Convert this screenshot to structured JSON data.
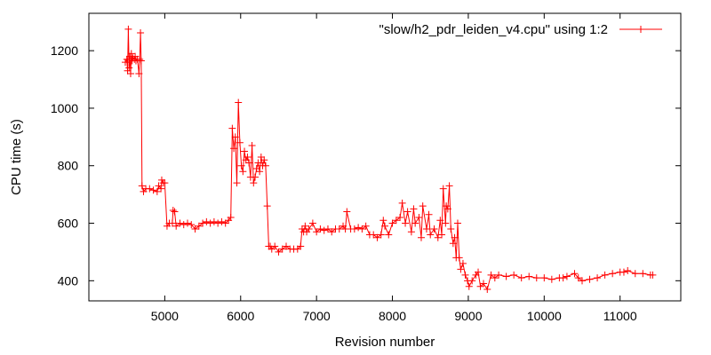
{
  "chart_data": {
    "type": "line",
    "xlabel": "Revision number",
    "ylabel": "CPU time (s)",
    "xlim": [
      4000,
      11800
    ],
    "ylim": [
      330,
      1330
    ],
    "xticks": [
      5000,
      6000,
      7000,
      8000,
      9000,
      10000,
      11000
    ],
    "yticks": [
      400,
      600,
      800,
      1000,
      1200
    ],
    "legend_position": "top-right",
    "colors": {
      "series": "#ff0000",
      "axis": "#000000"
    },
    "series": [
      {
        "name": "\"slow/h2_pdr_leiden_v4.cpu\" using 1:2",
        "marker": "plus",
        "x": [
          4480,
          4500,
          4510,
          4520,
          4530,
          4540,
          4550,
          4560,
          4570,
          4580,
          4600,
          4610,
          4620,
          4640,
          4660,
          4670,
          4680,
          4690,
          4700,
          4720,
          4750,
          4800,
          4850,
          4900,
          4920,
          4950,
          4960,
          4980,
          5000,
          5030,
          5060,
          5100,
          5110,
          5130,
          5150,
          5200,
          5250,
          5300,
          5350,
          5400,
          5450,
          5500,
          5550,
          5600,
          5650,
          5700,
          5750,
          5800,
          5840,
          5870,
          5890,
          5910,
          5930,
          5950,
          5970,
          5990,
          6010,
          6030,
          6050,
          6070,
          6090,
          6110,
          6130,
          6150,
          6170,
          6190,
          6210,
          6230,
          6250,
          6270,
          6290,
          6310,
          6330,
          6350,
          6370,
          6390,
          6410,
          6450,
          6500,
          6550,
          6600,
          6650,
          6700,
          6750,
          6790,
          6810,
          6830,
          6850,
          6870,
          6900,
          6950,
          7000,
          7050,
          7100,
          7150,
          7200,
          7250,
          7300,
          7350,
          7380,
          7400,
          7450,
          7500,
          7550,
          7600,
          7650,
          7700,
          7750,
          7800,
          7850,
          7880,
          7900,
          7950,
          8000,
          8050,
          8100,
          8130,
          8170,
          8200,
          8250,
          8280,
          8300,
          8350,
          8380,
          8400,
          8450,
          8480,
          8500,
          8550,
          8600,
          8630,
          8650,
          8670,
          8700,
          8710,
          8730,
          8750,
          8770,
          8800,
          8820,
          8840,
          8860,
          8880,
          8900,
          8930,
          8960,
          8990,
          9010,
          9050,
          9100,
          9130,
          9160,
          9200,
          9250,
          9300,
          9350,
          9400,
          9500,
          9600,
          9700,
          9800,
          9900,
          10000,
          10100,
          10200,
          10250,
          10300,
          10400,
          10450,
          10500,
          10600,
          10700,
          10800,
          10900,
          11000,
          11050,
          11100,
          11200,
          11300,
          11400,
          11430
        ],
        "y": [
          1160,
          1170,
          1130,
          1275,
          1140,
          1180,
          1120,
          1190,
          1165,
          1175,
          1170,
          1180,
          1165,
          1170,
          1120,
          1170,
          1262,
          1165,
          730,
          710,
          720,
          720,
          715,
          710,
          730,
          720,
          750,
          740,
          740,
          590,
          600,
          600,
          645,
          640,
          590,
          600,
          595,
          600,
          595,
          580,
          590,
          600,
          605,
          600,
          605,
          600,
          605,
          600,
          610,
          620,
          930,
          860,
          900,
          740,
          1020,
          880,
          800,
          780,
          850,
          820,
          830,
          810,
          760,
          870,
          740,
          760,
          790,
          810,
          780,
          830,
          800,
          820,
          800,
          660,
          520,
          520,
          510,
          520,
          500,
          510,
          520,
          510,
          510,
          510,
          520,
          580,
          570,
          590,
          570,
          580,
          600,
          570,
          580,
          575,
          580,
          570,
          580,
          580,
          590,
          580,
          640,
          580,
          580,
          585,
          580,
          590,
          560,
          560,
          550,
          560,
          610,
          590,
          560,
          600,
          610,
          620,
          670,
          600,
          640,
          570,
          650,
          600,
          620,
          550,
          660,
          580,
          630,
          560,
          580,
          550,
          610,
          560,
          720,
          600,
          660,
          650,
          730,
          580,
          530,
          550,
          480,
          600,
          480,
          440,
          460,
          420,
          400,
          380,
          400,
          420,
          430,
          380,
          390,
          370,
          420,
          410,
          420,
          415,
          420,
          410,
          415,
          410,
          410,
          405,
          410,
          410,
          415,
          425,
          410,
          400,
          405,
          410,
          420,
          425,
          430,
          430,
          435,
          425,
          425,
          420,
          420
        ]
      }
    ]
  }
}
